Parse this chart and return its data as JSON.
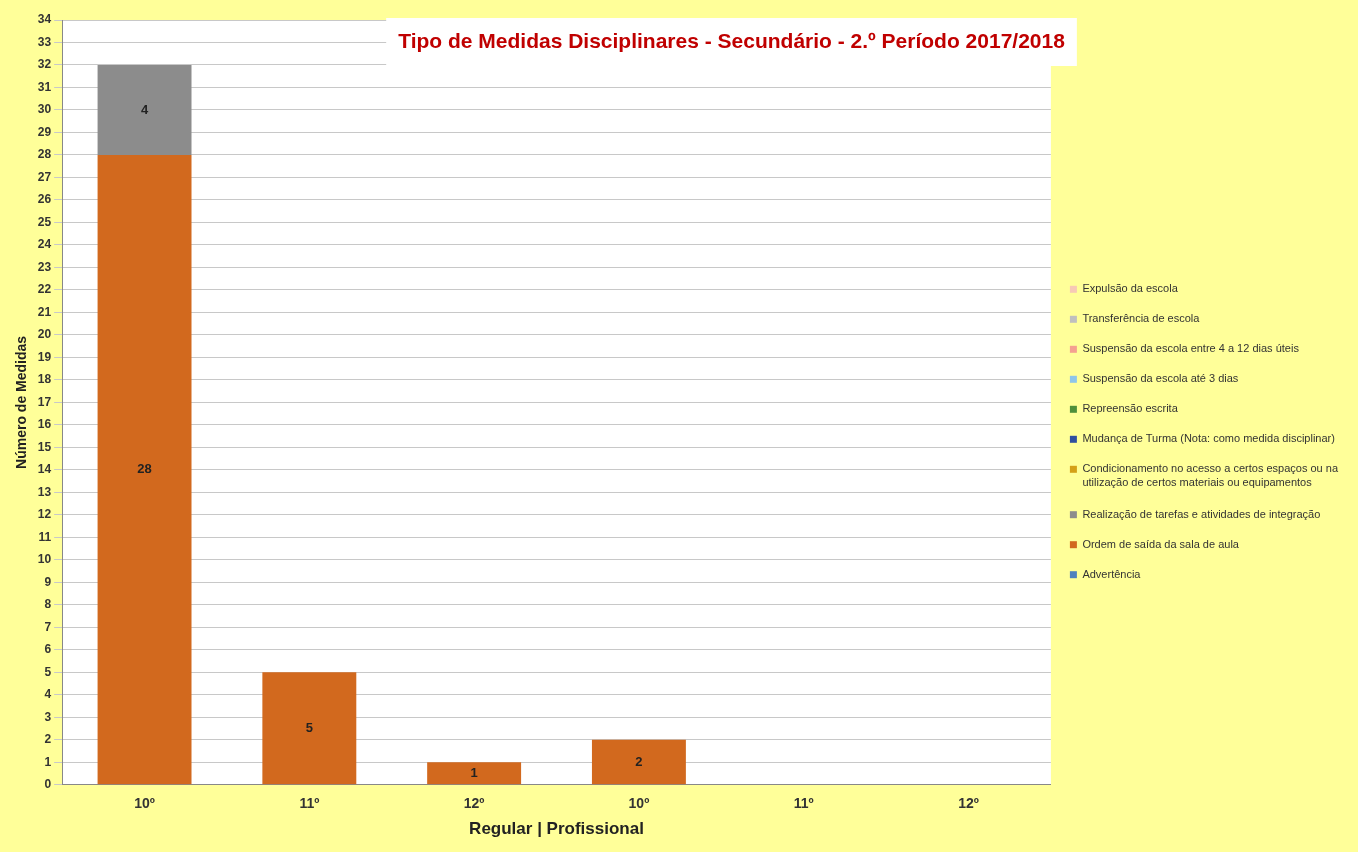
{
  "chart_data": {
    "type": "bar",
    "title": "Tipo de Medidas Disciplinares - Secundário - 2.º Período 2017/2018",
    "xlabel": "Regular | Profissional",
    "ylabel": "Número de Medidas",
    "categories": [
      "10º",
      "11º",
      "12º",
      "10º",
      "11º",
      "12º"
    ],
    "stacked": true,
    "data_labels": true,
    "grid": "y",
    "legend": "right",
    "ylim": [
      0,
      34
    ],
    "yticks": [
      0,
      1,
      2,
      3,
      4,
      5,
      6,
      7,
      8,
      9,
      10,
      11,
      12,
      13,
      14,
      15,
      16,
      17,
      18,
      19,
      20,
      21,
      22,
      23,
      24,
      25,
      26,
      27,
      28,
      29,
      30,
      31,
      32,
      33,
      34
    ],
    "series": [
      {
        "name": "Advertência",
        "color": "#4f81bd",
        "values": [
          null,
          null,
          null,
          null,
          null,
          null
        ]
      },
      {
        "name": "Ordem de saída da sala de aula",
        "color": "#d2691e",
        "values": [
          28,
          5,
          1,
          2,
          null,
          null
        ]
      },
      {
        "name": "Realização de tarefas e atividades de integração",
        "color": "#8c8c8c",
        "values": [
          4,
          null,
          null,
          null,
          null,
          null
        ]
      },
      {
        "name": "Condicionamento no acesso a certos espaços ou na utilização de certos materiais ou equipamentos",
        "color": "#d4a017",
        "values": [
          null,
          null,
          null,
          null,
          null,
          null
        ]
      },
      {
        "name": "Mudança de Turma (Nota: como medida disciplinar)",
        "color": "#2f4f9f",
        "values": [
          null,
          null,
          null,
          null,
          null,
          null
        ]
      },
      {
        "name": "Repreensão escrita",
        "color": "#4e8f3a",
        "values": [
          null,
          null,
          null,
          null,
          null,
          null
        ]
      },
      {
        "name": "Suspensão da escola até 3 dias",
        "color": "#8ec5ea",
        "values": [
          null,
          null,
          null,
          null,
          null,
          null
        ]
      },
      {
        "name": "Suspensão da escola entre 4 a 12 dias úteis",
        "color": "#f4a090",
        "values": [
          null,
          null,
          null,
          null,
          null,
          null
        ]
      },
      {
        "name": "Transferência de escola",
        "color": "#bfbfbf",
        "values": [
          null,
          null,
          null,
          null,
          null,
          null
        ]
      },
      {
        "name": "Expulsão da escola",
        "color": "#f7c9b5",
        "values": [
          null,
          null,
          null,
          null,
          null,
          null
        ]
      }
    ]
  }
}
